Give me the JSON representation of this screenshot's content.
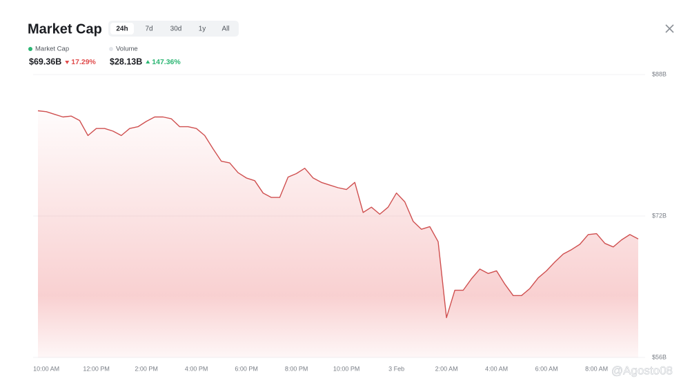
{
  "title": "Market Cap",
  "tabs": [
    "24h",
    "7d",
    "30d",
    "1y",
    "All"
  ],
  "selected_tab": 0,
  "stats": [
    {
      "name": "Market Cap",
      "value": "$69.36B",
      "change": "17.29%",
      "direction": "down",
      "color": "#2bb673"
    },
    {
      "name": "Volume",
      "value": "$28.13B",
      "change": "147.36%",
      "direction": "up",
      "color": "#e3e6ea"
    }
  ],
  "watermark": "@Agosto08",
  "chart_data": {
    "type": "line",
    "color": "#cf4f4f",
    "categories": [
      null,
      "10:00 AM",
      null,
      null,
      null,
      null,
      null,
      "12:00 PM",
      null,
      null,
      null,
      null,
      null,
      "2:00 PM",
      null,
      null,
      null,
      null,
      null,
      "4:00 PM",
      null,
      null,
      null,
      null,
      null,
      "6:00 PM",
      null,
      null,
      null,
      null,
      null,
      "8:00 PM",
      null,
      null,
      null,
      null,
      null,
      "10:00 PM",
      null,
      null,
      null,
      null,
      null,
      "3 Feb",
      null,
      null,
      null,
      null,
      null,
      "2:00 AM",
      null,
      null,
      null,
      null,
      null,
      "4:00 AM",
      null,
      null,
      null,
      null,
      null,
      "6:00 AM",
      null,
      null,
      null,
      null,
      null,
      "8:00 AM",
      null,
      null,
      null,
      null,
      null
    ],
    "values": [
      83.9,
      83.8,
      83.5,
      83.2,
      83.3,
      82.8,
      81.1,
      81.9,
      81.9,
      81.6,
      81.1,
      81.9,
      82.1,
      82.7,
      83.2,
      83.2,
      83.0,
      82.1,
      82.1,
      81.9,
      81.1,
      79.6,
      78.2,
      78.0,
      76.9,
      76.3,
      76.0,
      74.6,
      74.1,
      74.1,
      76.4,
      76.8,
      77.4,
      76.3,
      75.8,
      75.5,
      75.2,
      75.0,
      75.8,
      72.4,
      73.0,
      72.2,
      73.0,
      74.6,
      73.6,
      71.4,
      70.5,
      70.8,
      69.1,
      60.5,
      63.6,
      63.6,
      64.9,
      66.0,
      65.5,
      65.8,
      64.3,
      63.0,
      63.0,
      63.8,
      65.0,
      65.8,
      66.8,
      67.7,
      68.2,
      68.8,
      69.9,
      70.0,
      68.9,
      68.5,
      69.3,
      69.9,
      69.4
    ],
    "ylim": [
      56,
      88
    ],
    "yticks": [
      {
        "value": 56,
        "label": "$56B"
      },
      {
        "value": 72,
        "label": "$72B"
      },
      {
        "value": 88,
        "label": "$88B"
      }
    ],
    "grid": true
  }
}
